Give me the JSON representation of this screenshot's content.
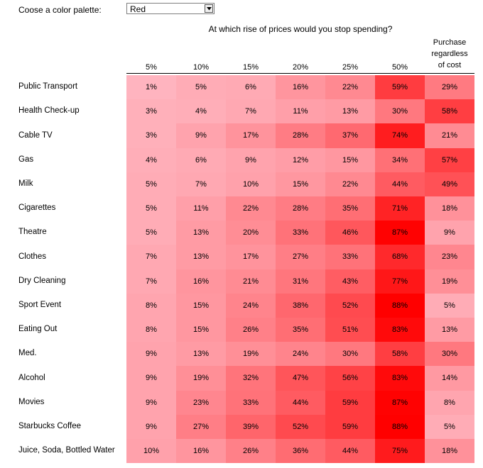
{
  "palette": {
    "label": "Coose a color palette:",
    "selected": "Red"
  },
  "chart_data": {
    "type": "heatmap",
    "title": "At which rise of prices would you stop spending?",
    "columns": [
      "5%",
      "10%",
      "15%",
      "20%",
      "25%",
      "50%",
      "Purchase regardless of cost"
    ],
    "rows": [
      {
        "label": "Public Transport",
        "values": [
          1,
          5,
          6,
          16,
          22,
          59,
          29
        ]
      },
      {
        "label": "Health Check-up",
        "values": [
          3,
          4,
          7,
          11,
          13,
          30,
          58
        ]
      },
      {
        "label": "Cable TV",
        "values": [
          3,
          9,
          17,
          28,
          37,
          74,
          21
        ]
      },
      {
        "label": "Gas",
        "values": [
          4,
          6,
          9,
          12,
          15,
          34,
          57
        ]
      },
      {
        "label": "Milk",
        "values": [
          5,
          7,
          10,
          15,
          22,
          44,
          49
        ]
      },
      {
        "label": "Cigarettes",
        "values": [
          5,
          11,
          22,
          28,
          35,
          71,
          18
        ]
      },
      {
        "label": "Theatre",
        "values": [
          5,
          13,
          20,
          33,
          46,
          87,
          9
        ]
      },
      {
        "label": "Clothes",
        "values": [
          7,
          13,
          17,
          27,
          33,
          68,
          23
        ]
      },
      {
        "label": "Dry Cleaning",
        "values": [
          7,
          16,
          21,
          31,
          43,
          77,
          19
        ]
      },
      {
        "label": "Sport Event",
        "values": [
          8,
          15,
          24,
          38,
          52,
          88,
          5
        ]
      },
      {
        "label": "Eating Out",
        "values": [
          8,
          15,
          26,
          35,
          51,
          83,
          13
        ]
      },
      {
        "label": "Med.",
        "values": [
          9,
          13,
          19,
          24,
          30,
          58,
          30
        ]
      },
      {
        "label": "Alcohol",
        "values": [
          9,
          19,
          32,
          47,
          56,
          83,
          14
        ]
      },
      {
        "label": "Movies",
        "values": [
          9,
          23,
          33,
          44,
          59,
          87,
          8
        ]
      },
      {
        "label": "Starbucks Coffee",
        "values": [
          9,
          27,
          39,
          52,
          59,
          88,
          5
        ]
      },
      {
        "label": "Juice, Soda, Bottled Water",
        "values": [
          10,
          16,
          26,
          36,
          44,
          75,
          18
        ]
      }
    ],
    "value_suffix": "%",
    "color_scale": {
      "low": "#ffb6c1",
      "high": "#ff0000"
    }
  }
}
